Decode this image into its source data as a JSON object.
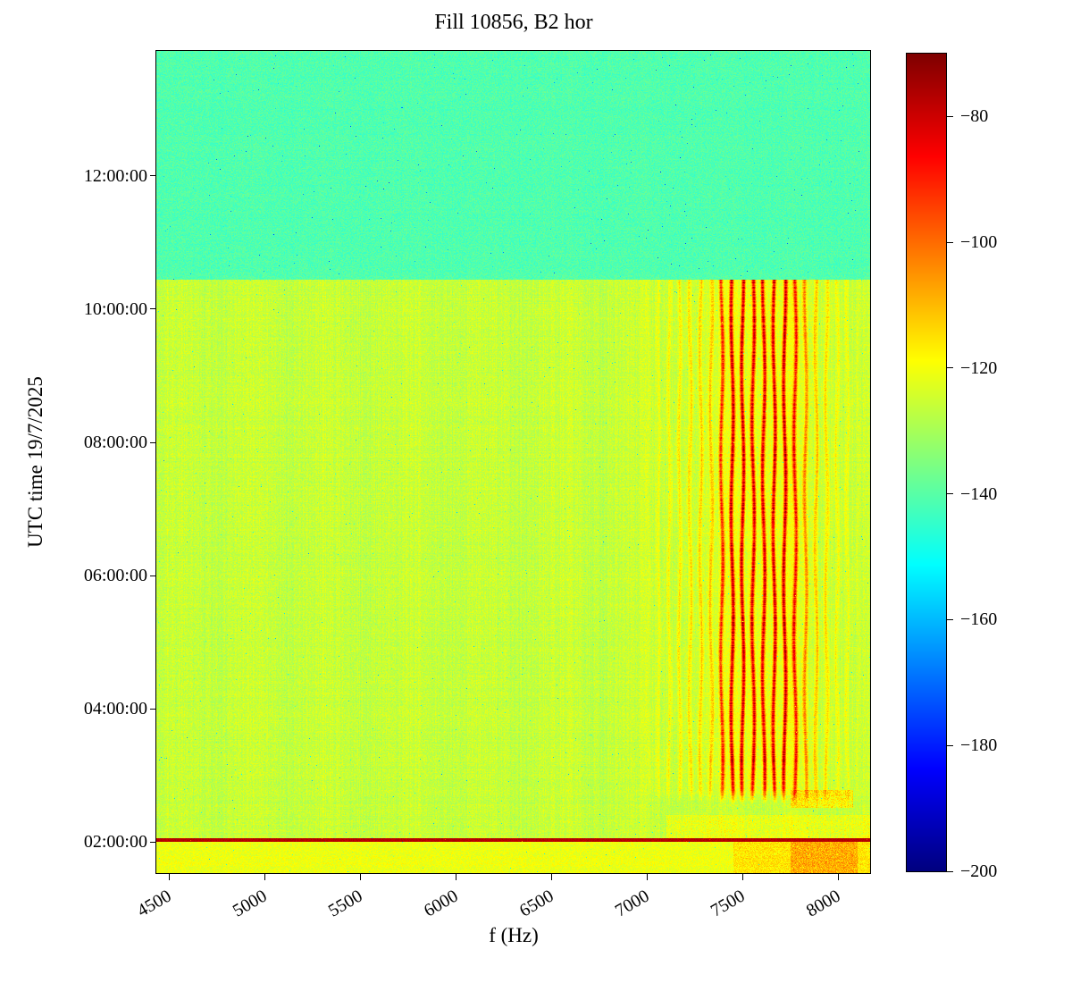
{
  "figure": {
    "title": "Fill 10856, B2 hor",
    "xlabel": "f (Hz)",
    "ylabel": "UTC time 19/7/2025"
  },
  "chart_data": {
    "type": "heatmap",
    "title": "Fill 10856, B2 hor",
    "xlabel": "f (Hz)",
    "ylabel": "UTC time 19/7/2025",
    "colormap": "jet",
    "value_unit": "dB",
    "color_range": [
      -200,
      -70
    ],
    "x_range_hz": [
      4430,
      8170
    ],
    "y_range_hours": [
      1.517,
      13.879
    ],
    "x_ticks": [
      {
        "hz": 4500,
        "label": "4500"
      },
      {
        "hz": 5000,
        "label": "5000"
      },
      {
        "hz": 5500,
        "label": "5500"
      },
      {
        "hz": 6000,
        "label": "6000"
      },
      {
        "hz": 6500,
        "label": "6500"
      },
      {
        "hz": 7000,
        "label": "7000"
      },
      {
        "hz": 7500,
        "label": "7500"
      },
      {
        "hz": 8000,
        "label": "8000"
      }
    ],
    "y_ticks": [
      {
        "hours": 2,
        "label": "02:00:00"
      },
      {
        "hours": 4,
        "label": "04:00:00"
      },
      {
        "hours": 6,
        "label": "06:00:00"
      },
      {
        "hours": 8,
        "label": "08:00:00"
      },
      {
        "hours": 10,
        "label": "10:00:00"
      },
      {
        "hours": 12,
        "label": "12:00:00"
      }
    ],
    "colorbar_ticks": [
      {
        "db": -80,
        "label": "−80"
      },
      {
        "db": -100,
        "label": "−100"
      },
      {
        "db": -120,
        "label": "−120"
      },
      {
        "db": -140,
        "label": "−140"
      },
      {
        "db": -160,
        "label": "−160"
      },
      {
        "db": -180,
        "label": "−180"
      },
      {
        "db": -200,
        "label": "−200"
      }
    ],
    "regions": {
      "upper_noise_floor": {
        "time_start_h": 10.45,
        "time_end_h": 13.879,
        "level_db": -141,
        "noise_db": 7
      },
      "main_floor": {
        "time_start_h": 2.045,
        "time_end_h": 10.45,
        "level_db": -126,
        "noise_db": 7
      },
      "horizontal_line": {
        "time_start_h": 1.995,
        "time_end_h": 2.045,
        "level_db": -77,
        "noise_db": 4
      },
      "bottom_band": {
        "time_start_h": 1.517,
        "time_end_h": 1.995,
        "level_db": -121,
        "noise_db": 7
      }
    },
    "speckle": {
      "probability": 0.0015,
      "depth_db": 25
    },
    "streak_band": {
      "f_start_hz": 6950,
      "f_end_hz": 8150,
      "spacing_hz": 55,
      "wiggle_hz": 6,
      "time_start_h": 2.6,
      "time_end_h": 10.45,
      "envelope_db_above_floor": [
        [
          6950,
          0
        ],
        [
          7150,
          8
        ],
        [
          7340,
          12
        ],
        [
          7420,
          38
        ],
        [
          7750,
          38
        ],
        [
          7850,
          14
        ],
        [
          8050,
          5
        ],
        [
          8150,
          0
        ]
      ]
    },
    "hot_patches": [
      {
        "f_start_hz": 7750,
        "f_end_hz": 8080,
        "time_start_h": 2.5,
        "time_end_h": 2.78,
        "boost_db": 12
      },
      {
        "f_start_hz": 7100,
        "f_end_hz": 8170,
        "time_start_h": 2.045,
        "time_end_h": 2.4,
        "boost_db": 6
      },
      {
        "f_start_hz": 7450,
        "f_end_hz": 8170,
        "time_start_h": 1.517,
        "time_end_h": 1.995,
        "boost_db": 7
      },
      {
        "f_start_hz": 7750,
        "f_end_hz": 8100,
        "time_start_h": 1.517,
        "time_end_h": 1.995,
        "boost_db": 10
      }
    ]
  }
}
